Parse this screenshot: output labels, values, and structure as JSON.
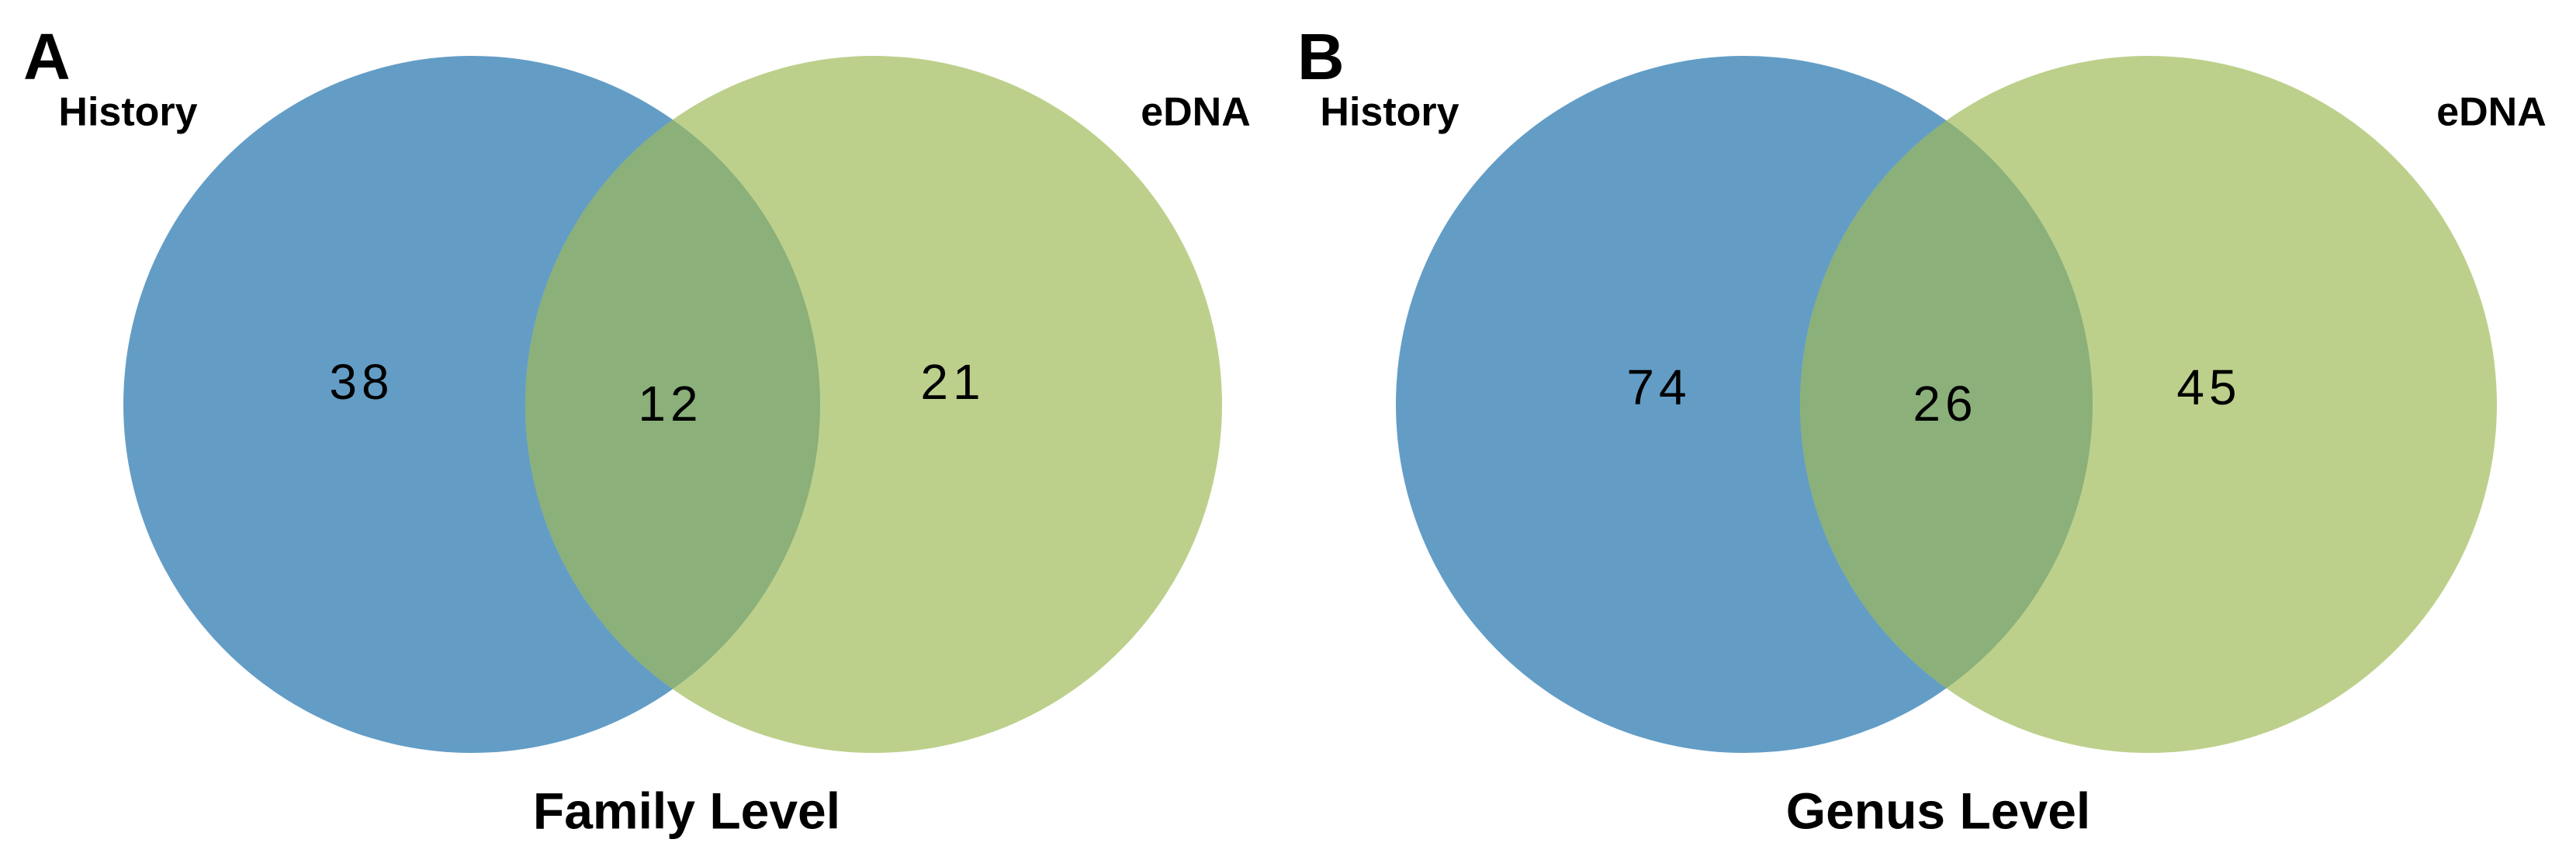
{
  "chart_data": [
    {
      "type": "venn",
      "panel": "A",
      "title": "Family Level",
      "sets": [
        {
          "name": "History",
          "color": "#639dc6"
        },
        {
          "name": "eDNA",
          "color": "#bcd08c"
        }
      ],
      "overlap_color": "#8bb07a",
      "values": [
        38,
        12,
        21
      ]
    },
    {
      "type": "venn",
      "panel": "B",
      "title": "Genus Level",
      "sets": [
        {
          "name": "History",
          "color": "#639dc6"
        },
        {
          "name": "eDNA",
          "color": "#bcd08c"
        }
      ],
      "overlap_color": "#8bb07a",
      "values": [
        74,
        26,
        45
      ]
    }
  ]
}
